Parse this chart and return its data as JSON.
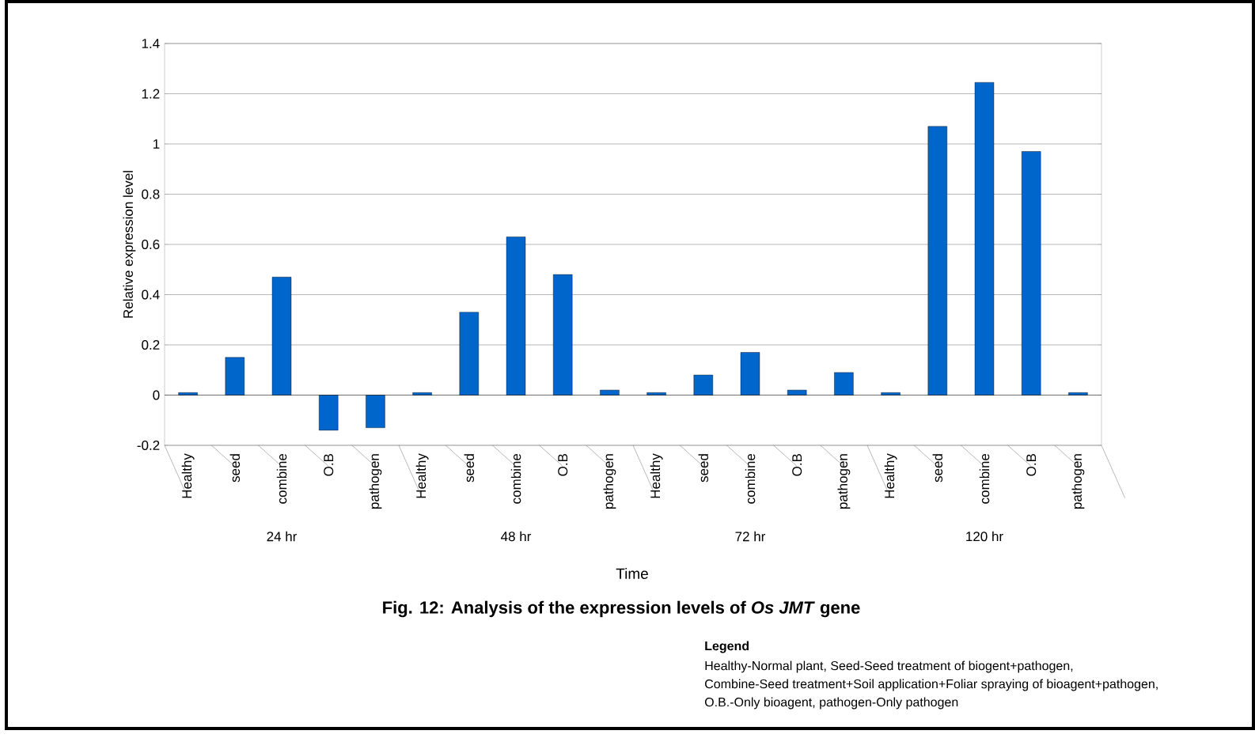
{
  "chart_data": {
    "type": "bar",
    "title": "Fig. 12: Analysis of the expression levels of *Os JMT* gene",
    "xlabel": "Time",
    "ylabel": "Relative expression level",
    "categories": [
      "Healthy",
      "seed",
      "combine",
      "O.B",
      "pathogen",
      "Healthy",
      "seed",
      "combine",
      "O.B",
      "pathogen",
      "Healthy",
      "seed",
      "combine",
      "O.B",
      "pathogen",
      "Healthy",
      "seed",
      "combine",
      "O.B",
      "pathogen"
    ],
    "values": [
      0.01,
      0.15,
      0.47,
      -0.14,
      -0.13,
      0.01,
      0.33,
      0.63,
      0.48,
      0.02,
      0.01,
      0.08,
      0.17,
      0.02,
      0.09,
      0.01,
      1.07,
      1.245,
      0.97,
      0.01
    ],
    "color": "#0066cc",
    "ylim": [
      -0.2,
      1.4
    ],
    "yticks": [
      -0.2,
      0,
      0.2,
      0.4,
      0.6,
      0.8,
      1,
      1.2,
      1.4
    ],
    "grid": "y",
    "annotations": [
      "24 hr",
      "48 hr",
      "72 hr",
      "120 hr",
      "Legend",
      "Healthy-Normal plant, Seed-Seed treatment of biogent+pathogen,",
      "Combine-Seed treatment+Soil application+Foliar spraying of bioagent+pathogen,",
      "O.B.-Only bioagent, pathogen-Only pathogen"
    ]
  }
}
